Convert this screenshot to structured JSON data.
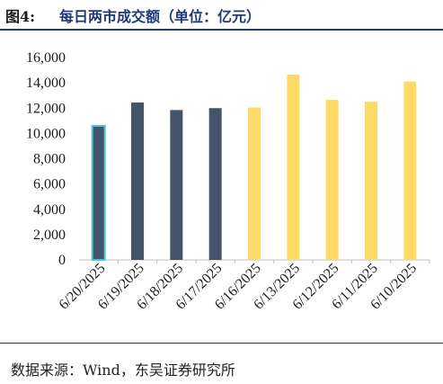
{
  "header": {
    "figure_label": "图4:",
    "title": "每日两市成交额（单位：亿元）"
  },
  "footer": {
    "source": "数据来源：Wind，东吴证券研究所"
  },
  "colors": {
    "current": "#44546a",
    "highlight_border": "#4ac5d8",
    "previous": "#ffd966",
    "axis": "#bfbfbf",
    "title": "#1f3b73"
  },
  "chart_data": {
    "type": "bar",
    "categories": [
      "6/20/2025",
      "6/19/2025",
      "6/18/2025",
      "6/17/2025",
      "6/16/2025",
      "6/13/2025",
      "6/12/2025",
      "6/11/2025",
      "6/10/2025"
    ],
    "values": [
      10600,
      12450,
      11850,
      12000,
      12050,
      14650,
      12650,
      12500,
      14100
    ],
    "bar_colors": [
      "#44546a",
      "#44546a",
      "#44546a",
      "#44546a",
      "#ffd966",
      "#ffd966",
      "#ffd966",
      "#ffd966",
      "#ffd966"
    ],
    "highlighted_index": 0,
    "ylim": [
      0,
      16000
    ],
    "yticks": [
      "0",
      "2,000",
      "4,000",
      "6,000",
      "8,000",
      "10,000",
      "12,000",
      "14,000",
      "16,000"
    ],
    "title": "",
    "xlabel": "",
    "ylabel": "",
    "grid": false,
    "legend": "none"
  }
}
